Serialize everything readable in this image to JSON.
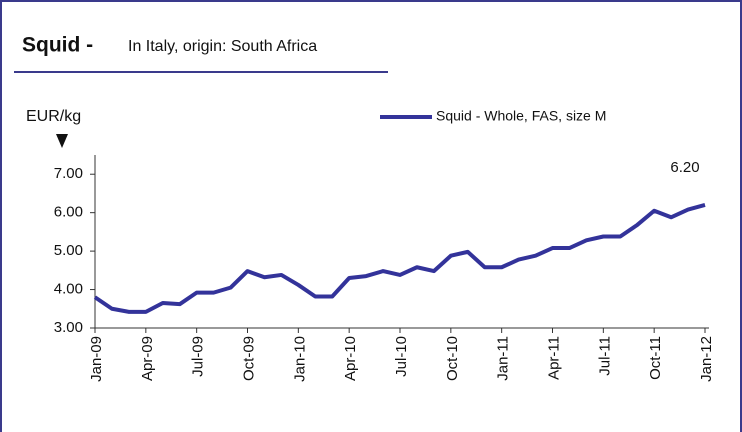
{
  "chart_data": {
    "type": "line",
    "title": "Squid -",
    "subtitle": "In Italy, origin: South Africa",
    "ylabel": "EUR/kg",
    "categories": [
      "Jan-09",
      null,
      null,
      "Apr-09",
      null,
      null,
      "Jul-09",
      null,
      null,
      "Oct-09",
      null,
      null,
      "Jan-10",
      null,
      null,
      "Apr-10",
      null,
      null,
      "Jul-10",
      null,
      null,
      "Oct-10",
      null,
      null,
      "Jan-11",
      null,
      null,
      "Apr-11",
      null,
      null,
      "Jul-11",
      null,
      null,
      "Oct-11",
      null,
      null,
      "Jan-12"
    ],
    "series": [
      {
        "name": "Squid - Whole, FAS, size M",
        "color": "#33339a",
        "values": [
          3.8,
          3.5,
          3.42,
          3.42,
          3.65,
          3.62,
          3.92,
          3.92,
          4.05,
          4.48,
          4.32,
          4.38,
          4.12,
          3.82,
          3.82,
          4.3,
          4.35,
          4.48,
          4.38,
          4.58,
          4.48,
          4.88,
          4.98,
          4.58,
          4.58,
          4.78,
          4.88,
          5.08,
          5.08,
          5.28,
          5.38,
          5.38,
          5.68,
          6.05,
          5.88,
          6.08,
          6.2
        ],
        "value_labels": [
          null,
          null,
          null,
          null,
          null,
          null,
          null,
          null,
          null,
          null,
          null,
          null,
          null,
          null,
          null,
          null,
          null,
          null,
          null,
          null,
          null,
          null,
          null,
          null,
          null,
          null,
          null,
          null,
          null,
          null,
          null,
          null,
          null,
          null,
          null,
          null,
          "6.20"
        ]
      }
    ],
    "ylim": [
      3,
      7.5
    ],
    "yticks": [
      {
        "value": 3,
        "label": "3.00"
      },
      {
        "value": 4,
        "label": "4.00"
      },
      {
        "value": 5,
        "label": "5.00"
      },
      {
        "value": 6,
        "label": "6.00"
      },
      {
        "value": 7,
        "label": "7.00"
      }
    ],
    "grid": false
  }
}
